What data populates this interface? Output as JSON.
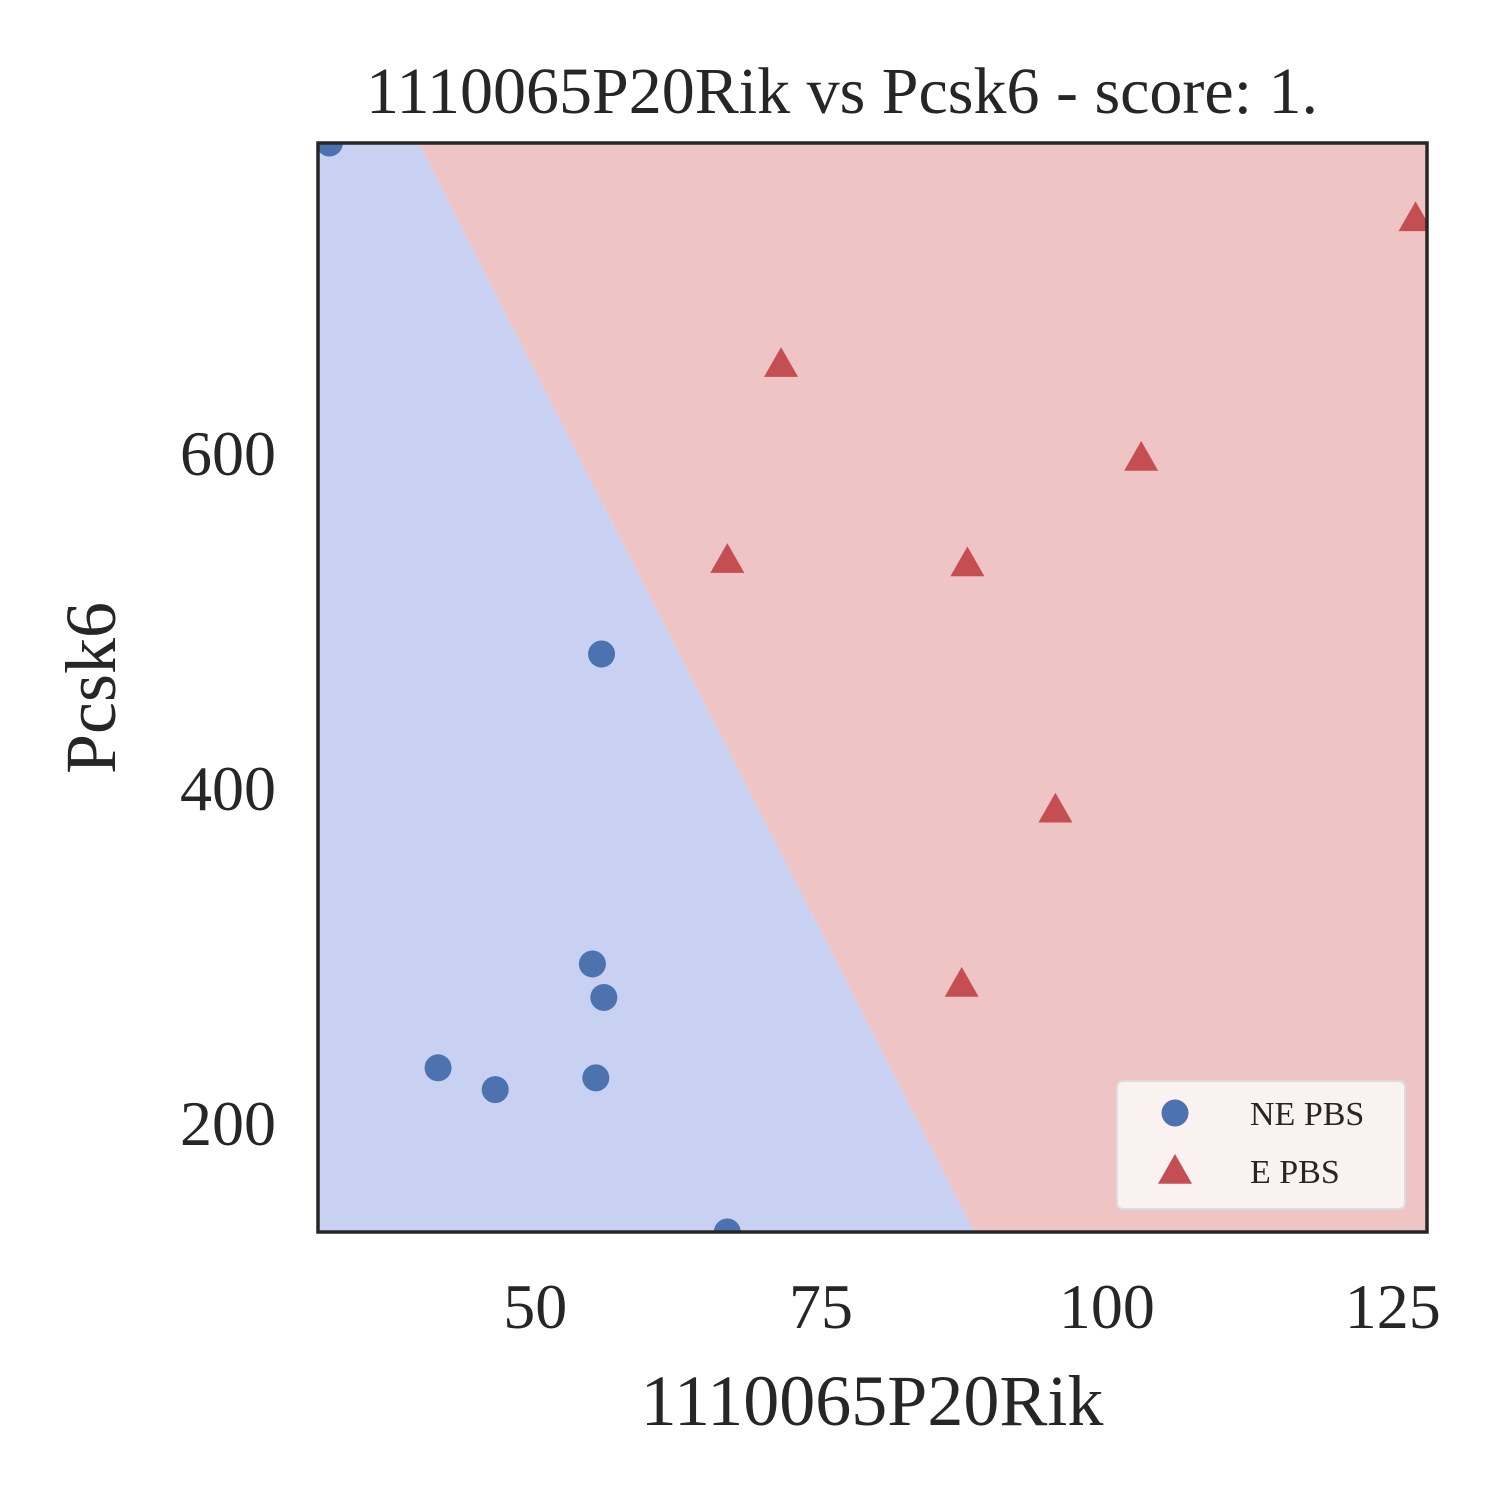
{
  "chart_data": {
    "type": "scatter",
    "title": "1110065P20Rik vs Pcsk6 - score: 1.",
    "xlabel": "1110065P20Rik",
    "ylabel": "Pcsk6",
    "xlim": [
      31,
      128
    ],
    "ylim": [
      135,
      785
    ],
    "xticks": [
      50,
      75,
      100,
      125
    ],
    "yticks": [
      200,
      400,
      600
    ],
    "grid": false,
    "legend_position": "bottom-right",
    "decision_boundary": {
      "points": [
        [
          39.8,
          785
        ],
        [
          88.4,
          135
        ]
      ],
      "colors": {
        "NE PBS": "#c8d1f2",
        "E PBS": "#eec4c4"
      }
    },
    "series": [
      {
        "name": "NE PBS",
        "marker": "circle",
        "color": "#4c72b0",
        "points": [
          [
            32,
            785
          ],
          [
            55.8,
            480
          ],
          [
            55,
            295
          ],
          [
            56,
            275
          ],
          [
            41.5,
            233
          ],
          [
            46.5,
            220
          ],
          [
            55.3,
            227
          ],
          [
            66.8,
            135
          ]
        ]
      },
      {
        "name": "E PBS",
        "marker": "triangle",
        "color": "#c44e52",
        "points": [
          [
            127,
            740
          ],
          [
            71.5,
            653
          ],
          [
            103,
            597
          ],
          [
            66.8,
            536
          ],
          [
            87.8,
            534
          ],
          [
            95.5,
            387
          ],
          [
            87.3,
            283
          ]
        ]
      }
    ]
  }
}
